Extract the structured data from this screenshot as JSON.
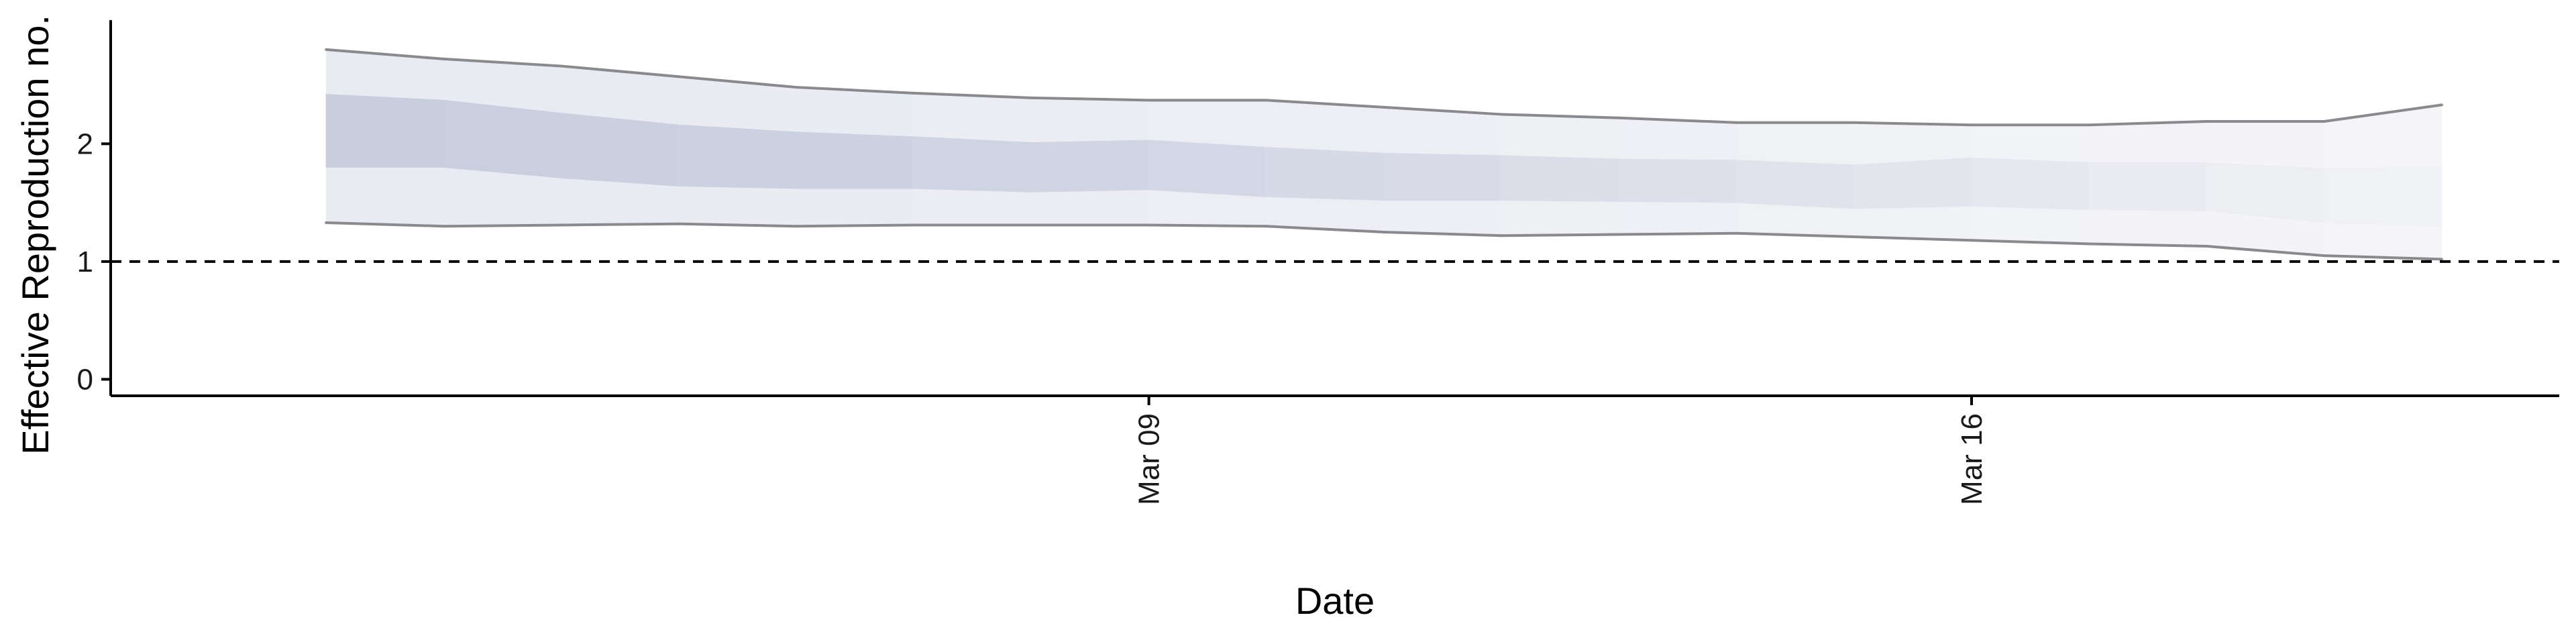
{
  "chart_data": {
    "type": "area",
    "title": "",
    "xlabel": "Date",
    "ylabel": "Effective Reproduction no.",
    "x": [
      "2020-03-02",
      "2020-03-03",
      "2020-03-04",
      "2020-03-05",
      "2020-03-06",
      "2020-03-07",
      "2020-03-08",
      "2020-03-09",
      "2020-03-10",
      "2020-03-11",
      "2020-03-12",
      "2020-03-13",
      "2020-03-14",
      "2020-03-15",
      "2020-03-16",
      "2020-03-17",
      "2020-03-18",
      "2020-03-19",
      "2020-03-20"
    ],
    "x_ticks": [
      {
        "date": "2020-03-09",
        "label": "Mar 09"
      },
      {
        "date": "2020-03-16",
        "label": "Mar 16"
      }
    ],
    "y_ticks": [
      0,
      1,
      2
    ],
    "ylim": [
      -0.14,
      3.05
    ],
    "xlim": [
      "2020-02-29T04:00",
      "2020-03-21T00:00"
    ],
    "reference_line": {
      "y": 1,
      "style": "dashed"
    },
    "series": [
      {
        "band": "outer",
        "lower": [
          1.33,
          1.3,
          1.31,
          1.32,
          1.3,
          1.31,
          1.31,
          1.31,
          1.3,
          1.25,
          1.22,
          1.23,
          1.24,
          1.21,
          1.18,
          1.15,
          1.13,
          1.05,
          1.02
        ],
        "upper": [
          2.8,
          2.72,
          2.66,
          2.57,
          2.48,
          2.43,
          2.39,
          2.37,
          2.37,
          2.31,
          2.25,
          2.22,
          2.18,
          2.18,
          2.16,
          2.16,
          2.19,
          2.19,
          2.33
        ]
      },
      {
        "band": "inner",
        "lower": [
          1.8,
          1.8,
          1.71,
          1.64,
          1.62,
          1.62,
          1.59,
          1.61,
          1.55,
          1.52,
          1.52,
          1.51,
          1.5,
          1.45,
          1.47,
          1.44,
          1.43,
          1.33,
          1.3
        ],
        "upper": [
          2.42,
          2.37,
          2.26,
          2.16,
          2.1,
          2.06,
          2.01,
          2.03,
          1.97,
          1.92,
          1.9,
          1.87,
          1.86,
          1.82,
          1.88,
          1.84,
          1.84,
          1.79,
          1.81
        ]
      }
    ],
    "colors": {
      "inner_band": "#c9cedf",
      "outer_band": "#e9ebf2",
      "fade_target": "#f7f7f8",
      "outer_line": "#8a8a8e",
      "axis": "#000000"
    },
    "grid": false,
    "legend": "none"
  }
}
